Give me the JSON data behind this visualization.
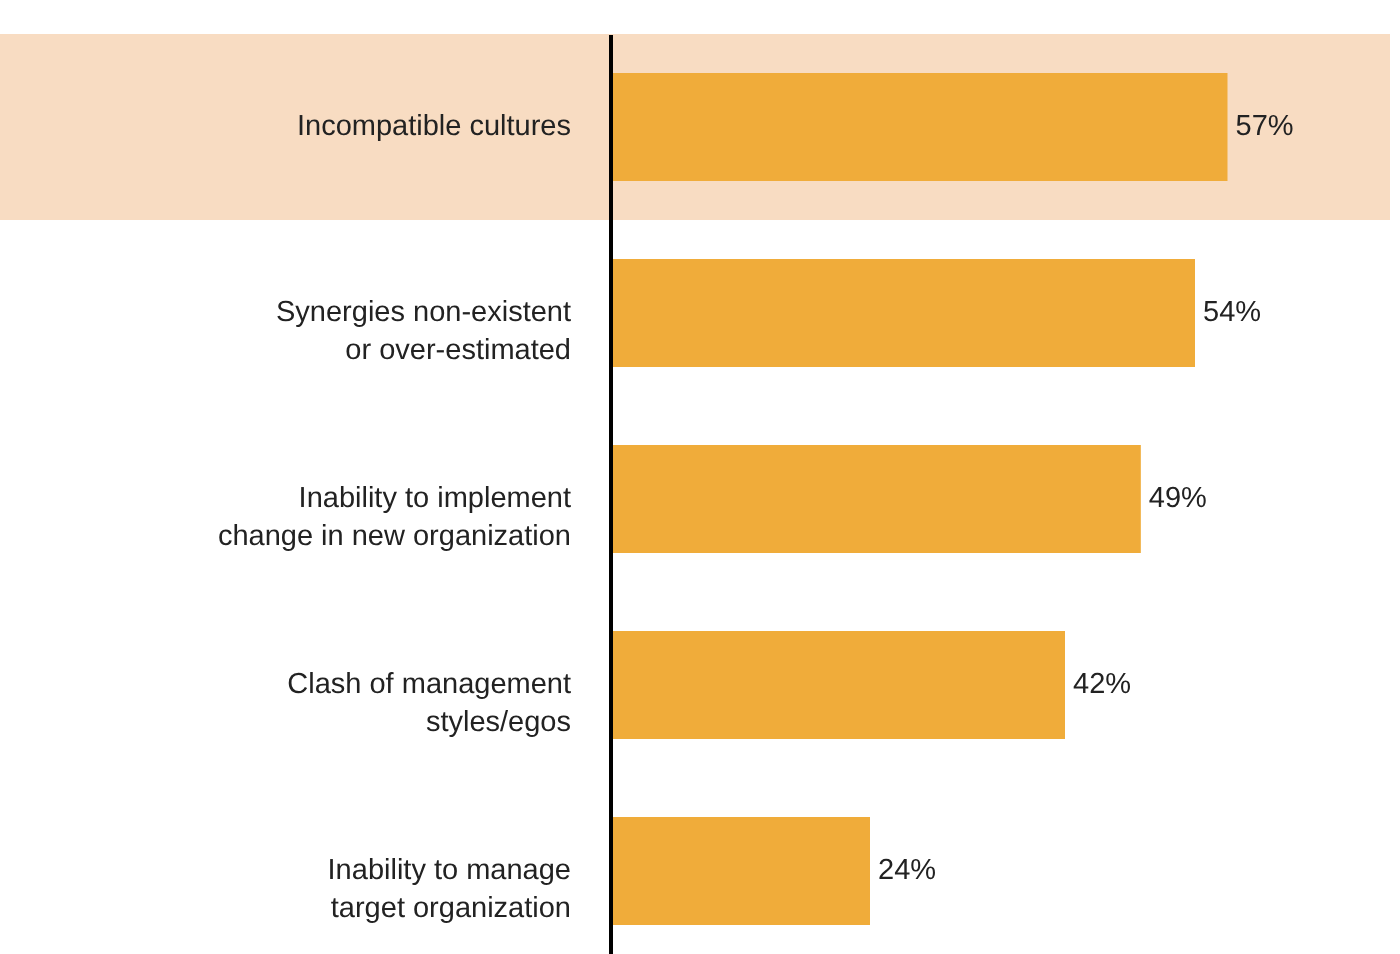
{
  "chart_data": {
    "type": "bar",
    "orientation": "horizontal",
    "categories": [
      "Incompatible cultures",
      "Synergies non-existent\nor over-estimated",
      "Inability to implement\nchange in new organization",
      "Clash of management\nstyles/egos",
      "Inability to manage\ntarget organization"
    ],
    "values": [
      57,
      54,
      49,
      42,
      24
    ],
    "value_labels": [
      "57%",
      "54%",
      "49%",
      "42%",
      "24%"
    ],
    "color": "#f0ac3a",
    "tick_labels": "y",
    "bands": [
      {
        "axis": "y",
        "from": "Incompatible cultures",
        "to": "Incompatible cultures",
        "color": "#f8dcc2"
      }
    ]
  }
}
